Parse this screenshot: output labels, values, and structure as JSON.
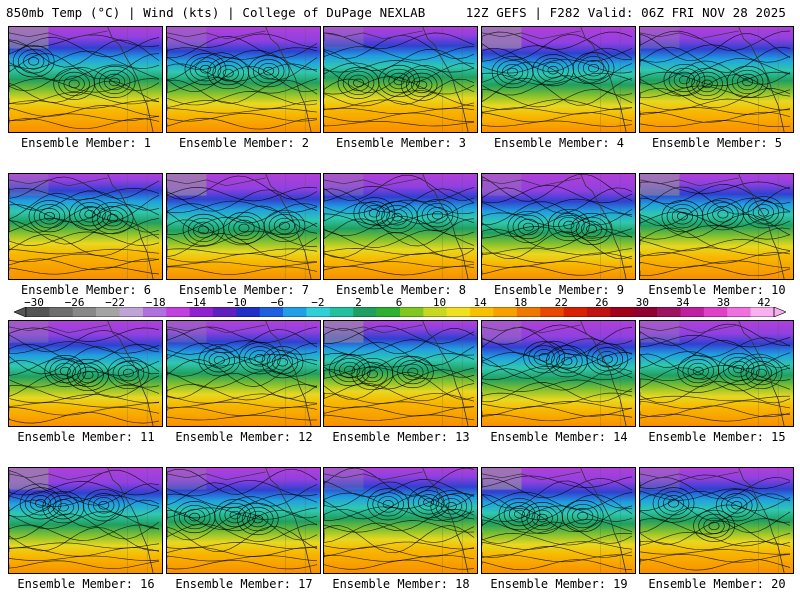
{
  "header": {
    "left_title": "850mb Temp (°C) | Wind (kts) | College of DuPage NEXLAB",
    "right_title": "12Z GEFS | F282 Valid: 06Z FRI NOV 28 2025"
  },
  "colorbar": {
    "ticks": [
      "−30",
      "−26",
      "−22",
      "−18",
      "−14",
      "−10",
      "−6",
      "−2",
      "2",
      "6",
      "10",
      "14",
      "18",
      "22",
      "26",
      "30",
      "34",
      "38",
      "42"
    ],
    "colors": [
      "#555555",
      "#6e6e6e",
      "#888888",
      "#a4a4a4",
      "#c0a4d8",
      "#b070e0",
      "#c040e0",
      "#9020d0",
      "#6020c0",
      "#2030c8",
      "#2060e0",
      "#20a0e8",
      "#30d0d8",
      "#20c0a0",
      "#20a060",
      "#30b030",
      "#80c820",
      "#c8d820",
      "#f0e020",
      "#f8c000",
      "#f8a000",
      "#f07800",
      "#e84800",
      "#d82000",
      "#c01010",
      "#a00018",
      "#900030",
      "#a01060",
      "#c020a0",
      "#e040c8",
      "#f070e0",
      "#f8b0f0"
    ]
  },
  "panels": [
    {
      "label": "Ensemble Member: 1"
    },
    {
      "label": "Ensemble Member: 2"
    },
    {
      "label": "Ensemble Member: 3"
    },
    {
      "label": "Ensemble Member: 4"
    },
    {
      "label": "Ensemble Member: 5"
    },
    {
      "label": "Ensemble Member: 6"
    },
    {
      "label": "Ensemble Member: 7"
    },
    {
      "label": "Ensemble Member: 8"
    },
    {
      "label": "Ensemble Member: 9"
    },
    {
      "label": "Ensemble Member: 10"
    },
    {
      "label": "Ensemble Member: 11"
    },
    {
      "label": "Ensemble Member: 12"
    },
    {
      "label": "Ensemble Member: 13"
    },
    {
      "label": "Ensemble Member: 14"
    },
    {
      "label": "Ensemble Member: 15"
    },
    {
      "label": "Ensemble Member: 16"
    },
    {
      "label": "Ensemble Member: 17"
    },
    {
      "label": "Ensemble Member: 18"
    },
    {
      "label": "Ensemble Member: 19"
    },
    {
      "label": "Ensemble Member: 20"
    }
  ]
}
